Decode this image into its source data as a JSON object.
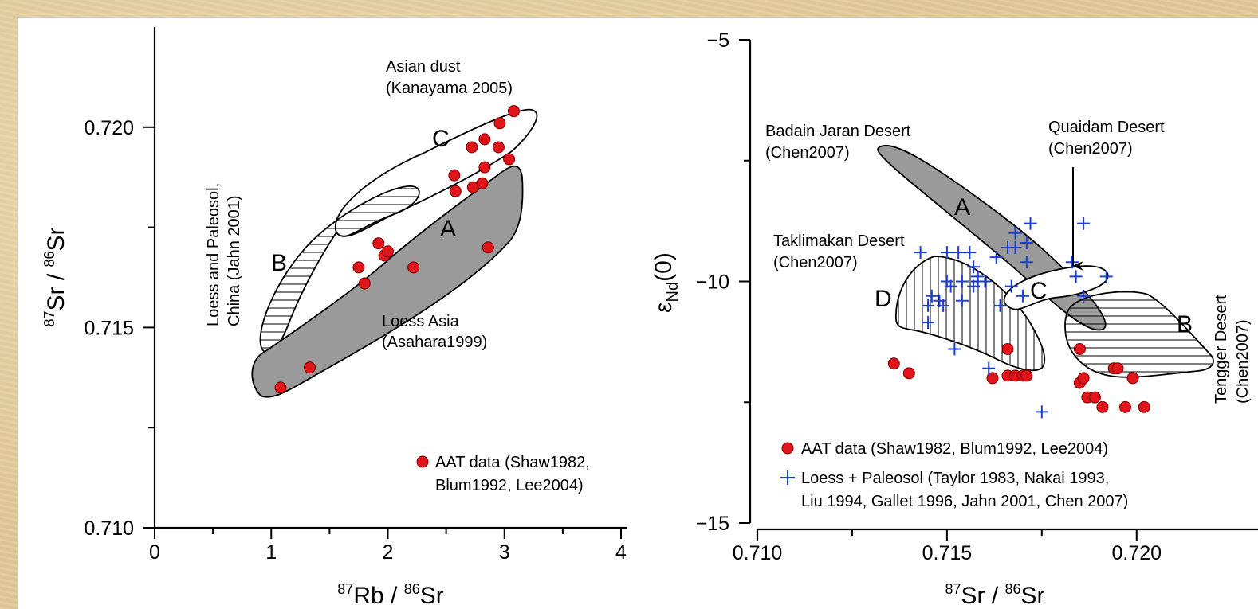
{
  "colors": {
    "background": "#e2c99a",
    "panel": "#ffffff",
    "aat_marker": "#e0141b",
    "loess_marker": "#1a3fd6",
    "region_gray": "#9a9a9a"
  },
  "chart_data": [
    {
      "type": "scatter",
      "title": "",
      "xlabel_main": "Rb",
      "xlabel_num_sup": "87",
      "xlabel_den_sup": "86",
      "xlabel_den": "Sr",
      "ylabel_main": "Sr",
      "ylabel_num_sup": "87",
      "ylabel_den_sup": "86",
      "ylabel_den": "Sr",
      "xlim": [
        0,
        4
      ],
      "ylim": [
        0.71,
        0.7225
      ],
      "x_ticks": [
        0,
        1,
        2,
        3,
        4
      ],
      "x_tick_labels": [
        "0",
        "1",
        "2",
        "3",
        "4"
      ],
      "y_ticks": [
        0.71,
        0.715,
        0.72
      ],
      "y_tick_labels": [
        "0.710",
        "0.715",
        "0.720"
      ],
      "grid": false,
      "legend_placement": "bottom-right",
      "legend": [
        {
          "marker": "circle",
          "lines": [
            "AAT data (Shaw1982,",
            "Blum1992, Lee2004)"
          ]
        }
      ],
      "regions": [
        {
          "letter": "C",
          "fill": "none",
          "lines": [
            "Asian dust",
            "(Kanayama 2005)"
          ]
        },
        {
          "letter": "A",
          "fill": "gray",
          "lines": [
            "Loess Asia",
            "(Asahara1999)"
          ]
        },
        {
          "letter": "B",
          "fill": "hatch-horizontal",
          "lines": [
            "Loess and Paleosol,",
            "China (Jahn 2001)"
          ]
        }
      ],
      "series": [
        {
          "marker": "circle",
          "points": [
            [
              1.08,
              0.7135
            ],
            [
              1.33,
              0.714
            ],
            [
              1.75,
              0.7165
            ],
            [
              1.8,
              0.7161
            ],
            [
              1.92,
              0.7171
            ],
            [
              1.97,
              0.7168
            ],
            [
              2.0,
              0.7169
            ],
            [
              2.22,
              0.7165
            ],
            [
              2.57,
              0.7188
            ],
            [
              2.58,
              0.7184
            ],
            [
              2.72,
              0.7195
            ],
            [
              2.73,
              0.7185
            ],
            [
              2.81,
              0.7186
            ],
            [
              2.83,
              0.7197
            ],
            [
              2.83,
              0.719
            ],
            [
              2.86,
              0.717
            ],
            [
              2.95,
              0.7195
            ],
            [
              2.96,
              0.7201
            ],
            [
              3.04,
              0.7192
            ],
            [
              3.08,
              0.7204
            ]
          ]
        }
      ]
    },
    {
      "type": "scatter",
      "title": "",
      "xlabel_main": "Sr",
      "xlabel_num_sup": "87",
      "xlabel_den_sup": "86",
      "xlabel_den": "Sr",
      "ylabel_main": "ε",
      "ylabel_sub": "Nd",
      "ylabel_suffix": "(0)",
      "xlim": [
        0.71,
        0.7232
      ],
      "ylim": [
        -15,
        -5
      ],
      "x_ticks": [
        0.71,
        0.715,
        0.72
      ],
      "x_tick_labels": [
        "0.710",
        "0.715",
        "0.720"
      ],
      "y_ticks": [
        -15,
        -10,
        -5
      ],
      "y_tick_labels": [
        "−15",
        "−10",
        "−5"
      ],
      "grid": false,
      "legend_placement": "bottom-left",
      "legend": [
        {
          "marker": "circle",
          "lines": [
            "AAT data (Shaw1982, Blum1992, Lee2004)"
          ]
        },
        {
          "marker": "plus",
          "lines": [
            "Loess + Paleosol (Taylor 1983, Nakai 1993,",
            "Liu 1994, Gallet 1996, Jahn 2001, Chen 2007)"
          ]
        }
      ],
      "regions": [
        {
          "letter": "A",
          "fill": "gray",
          "lines": [
            "Badain Jaran Desert",
            "(Chen2007)"
          ]
        },
        {
          "letter": "C",
          "fill": "none",
          "lines": [
            "Quaidam Desert",
            "(Chen2007)"
          ]
        },
        {
          "letter": "D",
          "fill": "hatch-vertical",
          "lines": [
            "Taklimakan Desert",
            "(Chen2007)"
          ]
        },
        {
          "letter": "B",
          "fill": "hatch-horizontal",
          "lines": [
            "Tengger Desert",
            "(Chen2007)"
          ]
        }
      ],
      "series": [
        {
          "marker": "circle",
          "points": [
            [
              0.7136,
              -11.7
            ],
            [
              0.714,
              -11.9
            ],
            [
              0.7162,
              -12.0
            ],
            [
              0.7166,
              -11.4
            ],
            [
              0.7166,
              -11.95
            ],
            [
              0.7168,
              -11.95
            ],
            [
              0.717,
              -11.95
            ],
            [
              0.7171,
              -11.95
            ],
            [
              0.7185,
              -11.4
            ],
            [
              0.7185,
              -12.1
            ],
            [
              0.7186,
              -12.0
            ],
            [
              0.7187,
              -12.4
            ],
            [
              0.7189,
              -12.4
            ],
            [
              0.7191,
              -12.6
            ],
            [
              0.7194,
              -11.8
            ],
            [
              0.7195,
              -11.8
            ],
            [
              0.7197,
              -12.6
            ],
            [
              0.7199,
              -12.0
            ],
            [
              0.7202,
              -12.6
            ]
          ]
        },
        {
          "marker": "plus",
          "points": [
            [
              0.7143,
              -9.4
            ],
            [
              0.7145,
              -10.5
            ],
            [
              0.7145,
              -10.85
            ],
            [
              0.7146,
              -10.3
            ],
            [
              0.7148,
              -10.4
            ],
            [
              0.7149,
              -10.5
            ],
            [
              0.715,
              -9.4
            ],
            [
              0.715,
              -10.0
            ],
            [
              0.7151,
              -10.1
            ],
            [
              0.7152,
              -11.4
            ],
            [
              0.7153,
              -9.4
            ],
            [
              0.7154,
              -10.0
            ],
            [
              0.7154,
              -10.4
            ],
            [
              0.7156,
              -9.4
            ],
            [
              0.7157,
              -9.7
            ],
            [
              0.7157,
              -10.1
            ],
            [
              0.7158,
              -9.9
            ],
            [
              0.7158,
              -10.0
            ],
            [
              0.716,
              -10.0
            ],
            [
              0.7161,
              -11.8
            ],
            [
              0.7163,
              -9.5
            ],
            [
              0.7164,
              -10.5
            ],
            [
              0.7166,
              -9.3
            ],
            [
              0.7167,
              -10.1
            ],
            [
              0.7168,
              -9.0
            ],
            [
              0.7168,
              -9.3
            ],
            [
              0.717,
              -10.3
            ],
            [
              0.7171,
              -9.2
            ],
            [
              0.7171,
              -9.6
            ],
            [
              0.7172,
              -8.8
            ],
            [
              0.7175,
              -12.7
            ],
            [
              0.7183,
              -9.6
            ],
            [
              0.7184,
              -9.9
            ],
            [
              0.7186,
              -8.8
            ],
            [
              0.7186,
              -10.3
            ],
            [
              0.7192,
              -9.9
            ]
          ]
        }
      ]
    }
  ]
}
